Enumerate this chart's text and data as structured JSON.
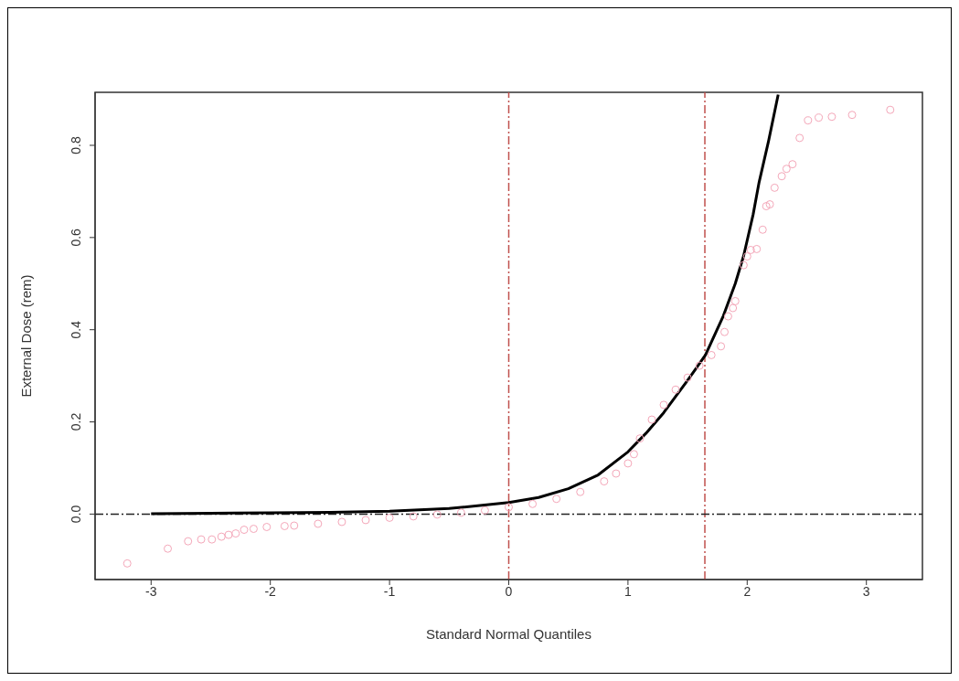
{
  "chart_data": {
    "type": "scatter",
    "xlabel": "Standard Normal Quantiles",
    "ylabel": "External Dose (rem)",
    "xlim": [
      -3.47,
      3.47
    ],
    "ylim": [
      -0.142,
      0.915
    ],
    "xticks": [
      -3,
      -2,
      -1,
      0,
      1,
      2,
      3
    ],
    "yticks": [
      {
        "value": 0,
        "label": "0.0"
      },
      {
        "value": 0.2,
        "label": "0.2"
      },
      {
        "value": 0.4,
        "label": "0.4"
      },
      {
        "value": 0.6,
        "label": "0.6"
      },
      {
        "value": 0.8,
        "label": "0.8"
      }
    ],
    "marker": "circle",
    "series": [
      {
        "color": "#f4a7b9",
        "x": [
          -3.2,
          -2.86,
          -2.69,
          -2.58,
          -2.49,
          -2.41,
          -2.35,
          -2.29,
          -2.22,
          -2.14,
          -2.03,
          -1.88,
          -1.8,
          -1.6,
          -1.4,
          -1.2,
          -1.0,
          -0.8,
          -0.6,
          -0.4,
          -0.2,
          0,
          0.2,
          0.4,
          0.6,
          0.8,
          0.9,
          1.0,
          1.05,
          1.1,
          1.2,
          1.3,
          1.4,
          1.5,
          1.6,
          1.7,
          1.78,
          1.81,
          1.84,
          1.88,
          1.9,
          1.97,
          2.0,
          2.03,
          2.08,
          2.13,
          2.16,
          2.19,
          2.23,
          2.29,
          2.33,
          2.38,
          2.44,
          2.51,
          2.6,
          2.71,
          2.88,
          3.2
        ],
        "values": [
          -0.107,
          -0.075,
          -0.059,
          -0.055,
          -0.055,
          -0.049,
          -0.045,
          -0.042,
          -0.034,
          -0.032,
          -0.028,
          -0.026,
          -0.025,
          -0.021,
          -0.017,
          -0.013,
          -0.008,
          -0.005,
          -0.001,
          0.003,
          0.008,
          0.015,
          0.022,
          0.033,
          0.048,
          0.071,
          0.088,
          0.11,
          0.13,
          0.164,
          0.205,
          0.237,
          0.27,
          0.296,
          0.322,
          0.345,
          0.364,
          0.395,
          0.429,
          0.447,
          0.462,
          0.54,
          0.559,
          0.573,
          0.575,
          0.617,
          0.668,
          0.672,
          0.708,
          0.733,
          0.749,
          0.759,
          0.816,
          0.854,
          0.86,
          0.862,
          0.866,
          0.877
        ]
      },
      {
        "type": "line",
        "color": "#000000",
        "marker": "none",
        "x": [
          -3,
          -2.5,
          -2,
          -1.5,
          -1,
          -0.5,
          0,
          0.25,
          0.5,
          0.75,
          1,
          1.15,
          1.3,
          1.5,
          1.65,
          1.8,
          1.9,
          1.97,
          2.05,
          2.1,
          2.18,
          2.26
        ],
        "values": [
          0.001,
          0.002,
          0.003,
          0.004,
          0.006,
          0.012,
          0.025,
          0.036,
          0.055,
          0.085,
          0.135,
          0.175,
          0.22,
          0.29,
          0.345,
          0.43,
          0.5,
          0.56,
          0.65,
          0.72,
          0.81,
          0.91
        ]
      }
    ],
    "ref_lines": [
      {
        "axis": "x",
        "value": 0,
        "color": "#c0504d",
        "line_style": "dashed"
      },
      {
        "axis": "x",
        "value": 1.645,
        "color": "#c0504d",
        "line_style": "dashed"
      },
      {
        "axis": "y",
        "value": 0,
        "color": "#222222",
        "line_style": "dashed"
      }
    ]
  }
}
